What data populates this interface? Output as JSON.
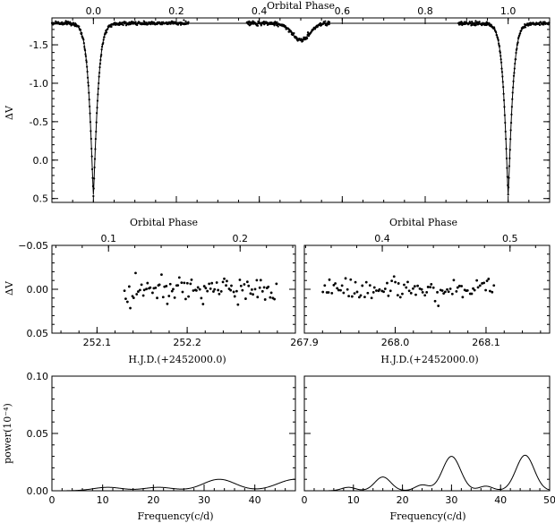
{
  "chart_data": [
    {
      "id": "lightcurve",
      "type": "line+scatter",
      "top_label": "Orbital Phase",
      "ylabel": "ΔV",
      "xlim": [
        -0.1,
        1.1
      ],
      "ylim": [
        0.55,
        -1.85
      ],
      "y_inverted": true,
      "x_ticks": [
        0.0,
        0.2,
        0.4,
        0.6,
        0.8,
        1.0
      ],
      "x_tick_labels": [
        "0.0",
        "0.2",
        "0.4",
        "0.6",
        "0.8",
        "1.0"
      ],
      "y_ticks": [
        -1.5,
        -1.0,
        -0.5,
        0.0,
        0.5
      ],
      "y_tick_labels": [
        "-1.5",
        "-1.0",
        "-0.5",
        "0.0",
        "0.5"
      ],
      "model": {
        "max_level": -1.78,
        "primary_depth": 0.45,
        "primary_width": 0.012,
        "secondary_level": -1.56,
        "secondary_width": 0.03
      },
      "observed_phase_ranges": [
        [
          -0.1,
          0.23
        ],
        [
          0.37,
          0.57
        ],
        [
          0.88,
          1.1
        ]
      ]
    },
    {
      "id": "residuals-left",
      "type": "scatter",
      "top_label": "Orbital Phase",
      "ylabel": "ΔV",
      "xlabel": "H.J.D.(+2452000.0)",
      "xlim": [
        252.05,
        252.32
      ],
      "ylim": [
        0.05,
        -0.05
      ],
      "y_inverted": true,
      "x_ticks": [
        252.1,
        252.2
      ],
      "x_tick_labels": [
        "252.1",
        "252.2"
      ],
      "y_ticks": [
        -0.05,
        0.0,
        0.05
      ],
      "y_tick_labels": [
        "−0.05",
        "0.00",
        "0.05"
      ],
      "phase_ticks": [
        0.1,
        0.2
      ],
      "phase_tick_labels": [
        "0.1",
        "0.2"
      ],
      "phase_xlim": [
        0.057,
        0.242
      ],
      "data_x_range": [
        252.13,
        252.3
      ],
      "scatter_sigma": 0.007
    },
    {
      "id": "residuals-right",
      "type": "scatter",
      "top_label": "Orbital Phase",
      "xlabel": "H.J.D.(+2452000.0)",
      "xlim": [
        267.9,
        268.17
      ],
      "ylim": [
        0.05,
        -0.05
      ],
      "y_inverted": true,
      "x_ticks": [
        267.9,
        268.0,
        268.1
      ],
      "x_tick_labels": [
        "267.9",
        "268.0",
        "268.1"
      ],
      "y_ticks": [
        -0.05,
        0.0,
        0.05
      ],
      "phase_ticks": [
        0.4,
        0.5
      ],
      "phase_tick_labels": [
        "0.4",
        "0.5"
      ],
      "phase_xlim": [
        0.339,
        0.531
      ],
      "data_x_range": [
        267.92,
        268.11
      ],
      "scatter_sigma": 0.006
    },
    {
      "id": "power-left",
      "type": "line",
      "ylabel": "power(10⁻⁴)",
      "xlabel": "Frequency(c/d)",
      "xlim": [
        0,
        48
      ],
      "ylim": [
        0,
        0.1
      ],
      "x_ticks": [
        0,
        10,
        20,
        30,
        40
      ],
      "x_tick_labels": [
        "0",
        "10",
        "20",
        "30",
        "40"
      ],
      "y_ticks": [
        0.0,
        0.05,
        0.1
      ],
      "y_tick_labels": [
        "0.00",
        "0.05",
        "0.10"
      ],
      "peaks": [
        {
          "f": 11,
          "p": 0.003,
          "w": 4
        },
        {
          "f": 21,
          "p": 0.003,
          "w": 4
        },
        {
          "f": 33,
          "p": 0.01,
          "w": 4.5
        },
        {
          "f": 48,
          "p": 0.01,
          "w": 5
        }
      ]
    },
    {
      "id": "power-right",
      "type": "line",
      "xlabel": "Frequency(c/d)",
      "xlim": [
        0,
        50
      ],
      "ylim": [
        0,
        0.1
      ],
      "x_ticks": [
        0,
        10,
        20,
        30,
        40,
        50
      ],
      "x_tick_labels": [
        "0",
        "10",
        "20",
        "30",
        "40",
        "50"
      ],
      "y_ticks": [
        0.0,
        0.05,
        0.1
      ],
      "peaks": [
        {
          "f": 9,
          "p": 0.003,
          "w": 2
        },
        {
          "f": 16,
          "p": 0.012,
          "w": 2.3
        },
        {
          "f": 24,
          "p": 0.005,
          "w": 2
        },
        {
          "f": 30,
          "p": 0.03,
          "w": 2.6
        },
        {
          "f": 37,
          "p": 0.004,
          "w": 2
        },
        {
          "f": 45,
          "p": 0.031,
          "w": 2.6
        }
      ]
    }
  ]
}
